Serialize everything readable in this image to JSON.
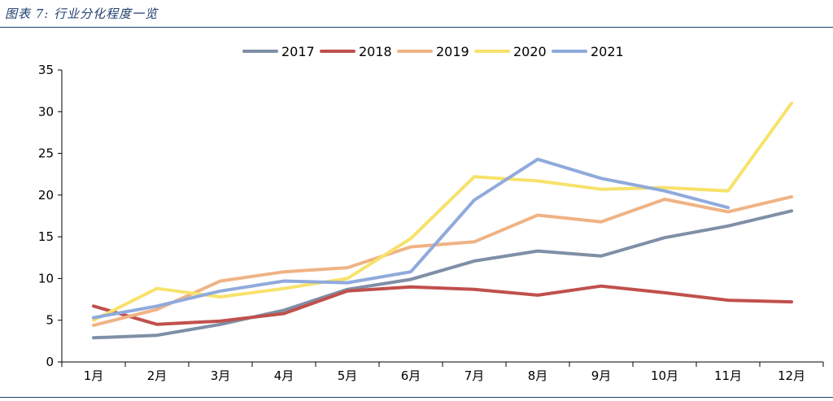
{
  "header": {
    "title": "图表 7:  行业分化程度一览"
  },
  "colors": {
    "2017": "#7f8fa6",
    "2018": "#c0504d",
    "2019": "#f0b384",
    "2020": "#f7e26b",
    "2021": "#8faadc",
    "rule": "#1f3f6e"
  },
  "chart_data": {
    "type": "line",
    "title": "",
    "xlabel": "",
    "ylabel": "",
    "categories": [
      "1月",
      "2月",
      "3月",
      "4月",
      "5月",
      "6月",
      "7月",
      "8月",
      "9月",
      "10月",
      "11月",
      "12月"
    ],
    "ylim": [
      0,
      35
    ],
    "yticks": [
      0,
      5,
      10,
      15,
      20,
      25,
      30,
      35
    ],
    "grid": false,
    "legend_position": "top-center",
    "series": [
      {
        "name": "2017",
        "color": "#7f8fa6",
        "values": [
          2.9,
          3.2,
          4.5,
          6.2,
          8.7,
          9.9,
          12.1,
          13.3,
          12.7,
          14.9,
          16.3,
          18.1
        ]
      },
      {
        "name": "2018",
        "color": "#c0504d",
        "values": [
          6.7,
          4.5,
          4.9,
          5.8,
          8.5,
          9.0,
          8.7,
          8.0,
          9.1,
          8.3,
          7.4,
          7.2
        ]
      },
      {
        "name": "2019",
        "color": "#f0b384",
        "values": [
          4.4,
          6.3,
          9.7,
          10.8,
          11.3,
          13.8,
          14.4,
          17.6,
          16.8,
          19.5,
          18.0,
          19.8
        ]
      },
      {
        "name": "2020",
        "color": "#f7e26b",
        "values": [
          5.0,
          8.8,
          7.8,
          8.8,
          10.0,
          14.8,
          22.2,
          21.7,
          20.7,
          20.9,
          20.5,
          31.0
        ]
      },
      {
        "name": "2021",
        "color": "#8faadc",
        "values": [
          5.3,
          6.7,
          8.5,
          9.7,
          9.5,
          10.8,
          19.4,
          24.3,
          22.0,
          20.5,
          18.5,
          null
        ]
      }
    ]
  }
}
